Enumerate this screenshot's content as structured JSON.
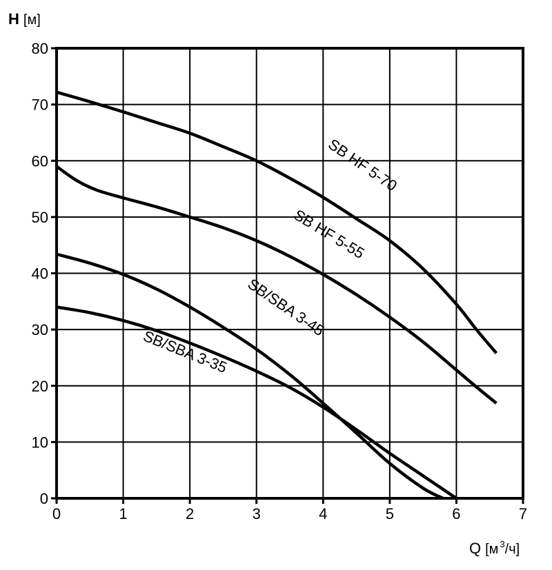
{
  "chart_data": {
    "type": "line",
    "y_axis": {
      "symbol": "H",
      "unit": "[м]",
      "range": [
        0,
        80
      ],
      "ticks": [
        "0",
        "10",
        "20",
        "30",
        "40",
        "50",
        "60",
        "70",
        "80"
      ]
    },
    "x_axis": {
      "symbol": "Q",
      "unit_prefix": "[м",
      "unit_power": "3",
      "unit_suffix": "/ч]",
      "range": [
        0,
        7
      ],
      "ticks": [
        "0",
        "1",
        "2",
        "3",
        "4",
        "5",
        "6",
        "7"
      ]
    },
    "grid": true,
    "series": [
      {
        "name": "SB HF 5-70",
        "x": [
          0,
          0.5,
          1,
          1.5,
          2,
          2.5,
          3,
          3.5,
          4,
          4.5,
          5,
          5.5,
          6,
          6.3,
          6.6
        ],
        "y": [
          72.2,
          70.5,
          68.7,
          66.8,
          64.9,
          62.5,
          60.0,
          56.9,
          53.5,
          49.7,
          45.8,
          40.8,
          34.5,
          30.0,
          25.8
        ]
      },
      {
        "name": "SB HF 5-55",
        "x": [
          0,
          0.3,
          0.6,
          1,
          1.5,
          2,
          2.5,
          3,
          3.5,
          4,
          4.5,
          5,
          5.5,
          6,
          6.3,
          6.6
        ],
        "y": [
          59.0,
          56.5,
          54.8,
          53.4,
          51.8,
          50.0,
          48.1,
          45.8,
          43.0,
          39.8,
          36.2,
          32.2,
          27.8,
          22.8,
          19.8,
          16.9
        ]
      },
      {
        "name": "SB/SBA 3-45",
        "x": [
          0,
          0.5,
          1,
          1.5,
          2,
          2.5,
          3,
          3.5,
          4,
          4.5,
          5,
          5.5,
          5.8
        ],
        "y": [
          43.4,
          41.8,
          39.8,
          37.2,
          34.0,
          30.4,
          26.5,
          22.0,
          16.9,
          11.6,
          6.2,
          1.8,
          0
        ]
      },
      {
        "name": "SB/SBA 3-35",
        "x": [
          0,
          0.5,
          1,
          1.5,
          2,
          2.5,
          3,
          3.5,
          4,
          4.5,
          5,
          5.5,
          6
        ],
        "y": [
          34.0,
          33.0,
          31.6,
          29.8,
          27.6,
          25.2,
          22.6,
          19.7,
          16.2,
          12.2,
          8.0,
          4.0,
          0
        ]
      }
    ],
    "annotations": [
      {
        "text": "SB HF 5-70",
        "x": 4.55,
        "y": 58.5,
        "angle": 34.5
      },
      {
        "text": "SB HF 5-55",
        "x": 4.05,
        "y": 46.2,
        "angle": 31.5
      },
      {
        "text": "SB/SBA 3-45",
        "x": 3.4,
        "y": 33.2,
        "angle": 34.5
      },
      {
        "text": "SB/SBA 3-35",
        "x": 1.9,
        "y": 25.2,
        "angle": 22
      }
    ]
  }
}
